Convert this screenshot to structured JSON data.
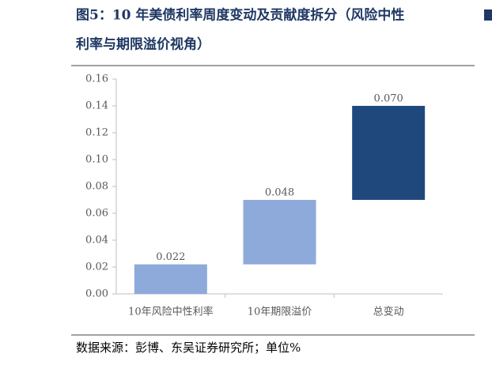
{
  "chart_data": {
    "type": "waterfall",
    "title_line1": "图5：10 年美债利率周度变动及贡献度拆分（风险中性",
    "title_line2": "利率与期限溢价视角）",
    "source": "数据来源：彭博、东吴证券研究所；单位%",
    "categories": [
      "10年风险中性利率",
      "10年期限溢价",
      "总变动"
    ],
    "values": [
      0.022,
      0.048,
      0.07
    ],
    "value_labels": [
      "0.022",
      "0.048",
      "0.070"
    ],
    "colors": [
      "#8eaadb",
      "#8eaadb",
      "#1f497d"
    ],
    "ylim": [
      0,
      0.16
    ],
    "yticks": [
      {
        "value": 0,
        "label": "0.00"
      },
      {
        "value": 0.02,
        "label": "0.02"
      },
      {
        "value": 0.04,
        "label": "0.04"
      },
      {
        "value": 0.06,
        "label": "0.06"
      },
      {
        "value": 0.08,
        "label": "0.08"
      },
      {
        "value": 0.1,
        "label": "0.10"
      },
      {
        "value": 0.12,
        "label": "0.12"
      },
      {
        "value": 0.14,
        "label": "0.14"
      },
      {
        "value": 0.16,
        "label": "0.16"
      }
    ]
  }
}
